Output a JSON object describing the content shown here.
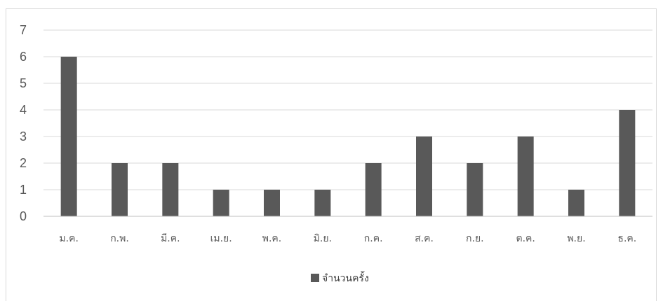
{
  "chart_data": {
    "type": "bar",
    "categories": [
      "ม.ค.",
      "ก.พ.",
      "มี.ค.",
      "เม.ย.",
      "พ.ค.",
      "มิ.ย.",
      "ก.ค.",
      "ส.ค.",
      "ก.ย.",
      "ต.ค.",
      "พ.ย.",
      "ธ.ค."
    ],
    "series": [
      {
        "name": "จำนวนครั้ง",
        "values": [
          6,
          2,
          2,
          1,
          1,
          1,
          2,
          3,
          2,
          3,
          1,
          4
        ],
        "color": "#595959"
      }
    ],
    "title": "",
    "xlabel": "",
    "ylabel": "",
    "ylim": [
      0,
      7
    ],
    "yticks": [
      0,
      1,
      2,
      3,
      4,
      5,
      6,
      7
    ],
    "grid": true,
    "legend_position": "bottom",
    "gridline_color": "#d9d9d9",
    "axis_line_color": "#bfbfbf"
  }
}
